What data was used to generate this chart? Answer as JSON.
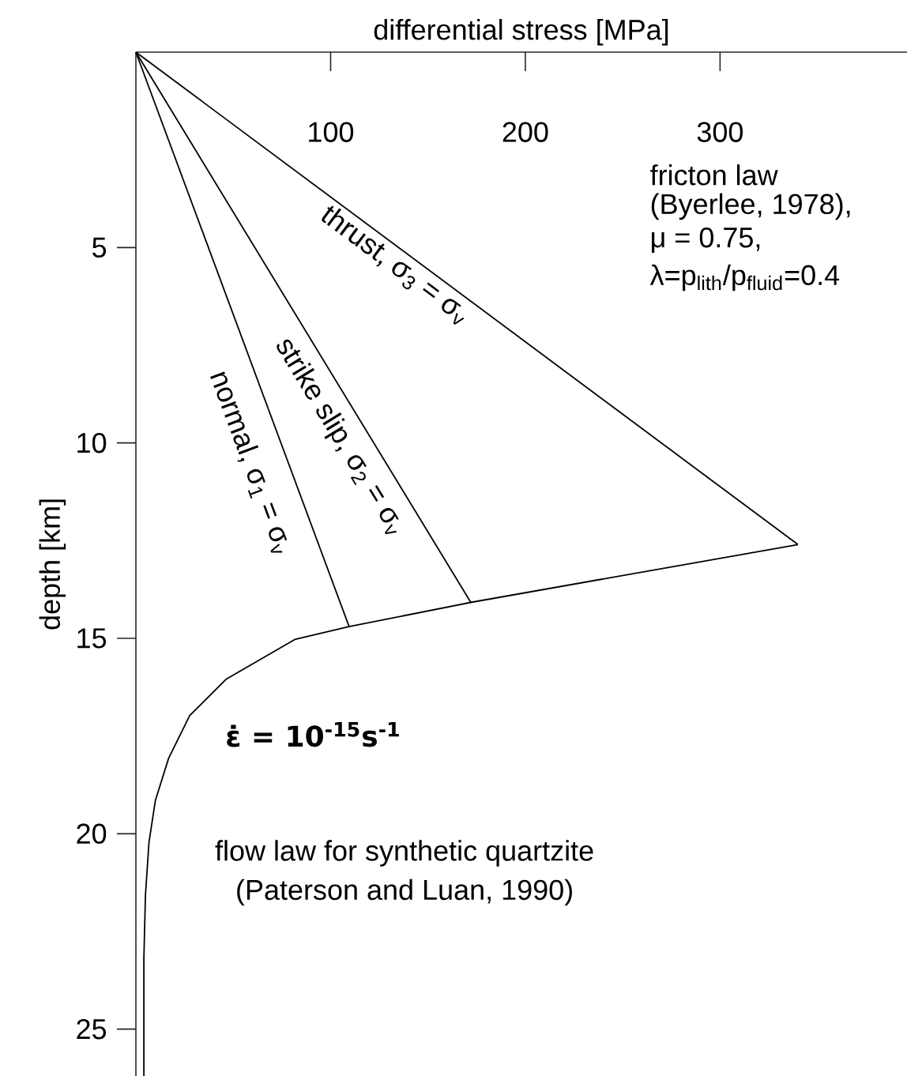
{
  "chart_data": {
    "type": "line",
    "xlabel": "differential stress [MPa]",
    "ylabel": "depth [km]",
    "xlim": [
      0,
      396
    ],
    "ylim": [
      26.2,
      0
    ],
    "xticks": [
      100,
      200,
      300
    ],
    "yticks": [
      5,
      10,
      15,
      20,
      25
    ],
    "marker": "none",
    "line_style": "solid",
    "series": [
      {
        "color": "#000000",
        "x": [
          0,
          340
        ],
        "values": [
          0,
          12.6
        ]
      },
      {
        "color": "#000000",
        "x": [
          0,
          172
        ],
        "values": [
          0,
          14.08
        ]
      },
      {
        "color": "#000000",
        "x": [
          0,
          109.5
        ],
        "values": [
          0,
          14.7
        ]
      },
      {
        "color": "#000000",
        "x": [
          340,
          172,
          109.5,
          81.6,
          46.5,
          27.6,
          16.8,
          10.0,
          6.7,
          4.9,
          4.1,
          4.1
        ],
        "values": [
          12.6,
          14.08,
          14.7,
          15.03,
          16.04,
          16.98,
          18.07,
          19.15,
          20.23,
          21.58,
          23.2,
          26.2
        ]
      }
    ],
    "annotations": [
      "thrust, σ$_{3}$ = σ$_{v}$",
      "strike slip, σ$_{2}$ = σ$_{v}$",
      "normal, σ$_{1}$ = σ$_{v}$",
      "fricton law",
      "(Byerlee, 1978),",
      "μ = 0.75,",
      "λ=p$_{lith}$/p$_{fluid}$=0.4",
      "ε̇ = 10$^{-15}$s$^{-1}$",
      "flow law for synthetic quartzite",
      "(Paterson and Luan, 1990)"
    ]
  }
}
